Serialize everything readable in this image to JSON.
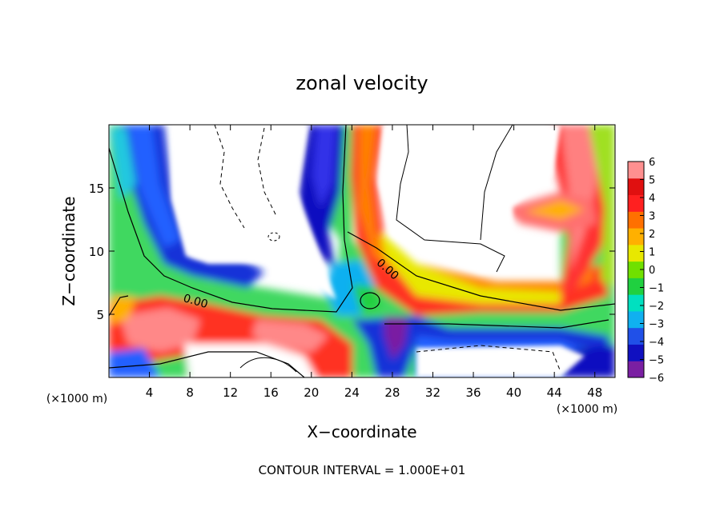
{
  "chart_data": {
    "type": "heatmap",
    "title": "zonal velocity",
    "xlabel": "X−coordinate",
    "ylabel": "Z−coordinate",
    "x_unit_note": "(×1000 m)",
    "y_unit_note": "(×1000 m)",
    "footer": "CONTOUR INTERVAL = 1.000E+01",
    "xlim": [
      0,
      50
    ],
    "ylim": [
      0,
      20
    ],
    "xticks": [
      4,
      8,
      12,
      16,
      20,
      24,
      28,
      32,
      36,
      40,
      44,
      48
    ],
    "yticks": [
      5,
      10,
      15
    ],
    "colorbar": {
      "range": [
        -6,
        6
      ],
      "ticks": [
        6,
        5,
        4,
        3,
        2,
        1,
        0,
        -1,
        -2,
        -3,
        -4,
        -5,
        -6
      ],
      "tick_labels": [
        "6",
        "5",
        "4",
        "3",
        "2",
        "1",
        "0",
        "−1",
        "−2",
        "−3",
        "−4",
        "−5",
        "−6"
      ],
      "colors": [
        "#7a1fa2",
        "#1010c0",
        "#2050e8",
        "#10b0f0",
        "#00e0c0",
        "#20d040",
        "#70e000",
        "#e8e800",
        "#ffb000",
        "#ff7000",
        "#ff2020",
        "#e01010",
        "#ff9090"
      ]
    },
    "contour_labels": [
      {
        "text": "0.00",
        "x": 9.0,
        "z": 6.2
      },
      {
        "text": "0.00",
        "x": 27.0,
        "z": 8.4
      }
    ],
    "features": [
      {
        "name": "negative jet upper left",
        "x_range": [
          2,
          8
        ],
        "z_range": [
          9,
          20
        ],
        "value": -5
      },
      {
        "name": "negative core center",
        "x_range": [
          19,
          23
        ],
        "z_range": [
          11,
          20
        ],
        "value": -5
      },
      {
        "name": "positive jet center",
        "x_range": [
          24,
          28
        ],
        "z_range": [
          9,
          20
        ],
        "value": 5
      },
      {
        "name": "positive jet right",
        "x_range": [
          44,
          48
        ],
        "z_range": [
          6,
          20
        ],
        "value": 5
      },
      {
        "name": "positive lower left",
        "x_range": [
          1,
          9
        ],
        "z_range": [
          2,
          6
        ],
        "value": 5
      },
      {
        "name": "negative lower center",
        "x_range": [
          27,
          32
        ],
        "z_range": [
          0,
          4
        ],
        "value": -5
      }
    ]
  }
}
